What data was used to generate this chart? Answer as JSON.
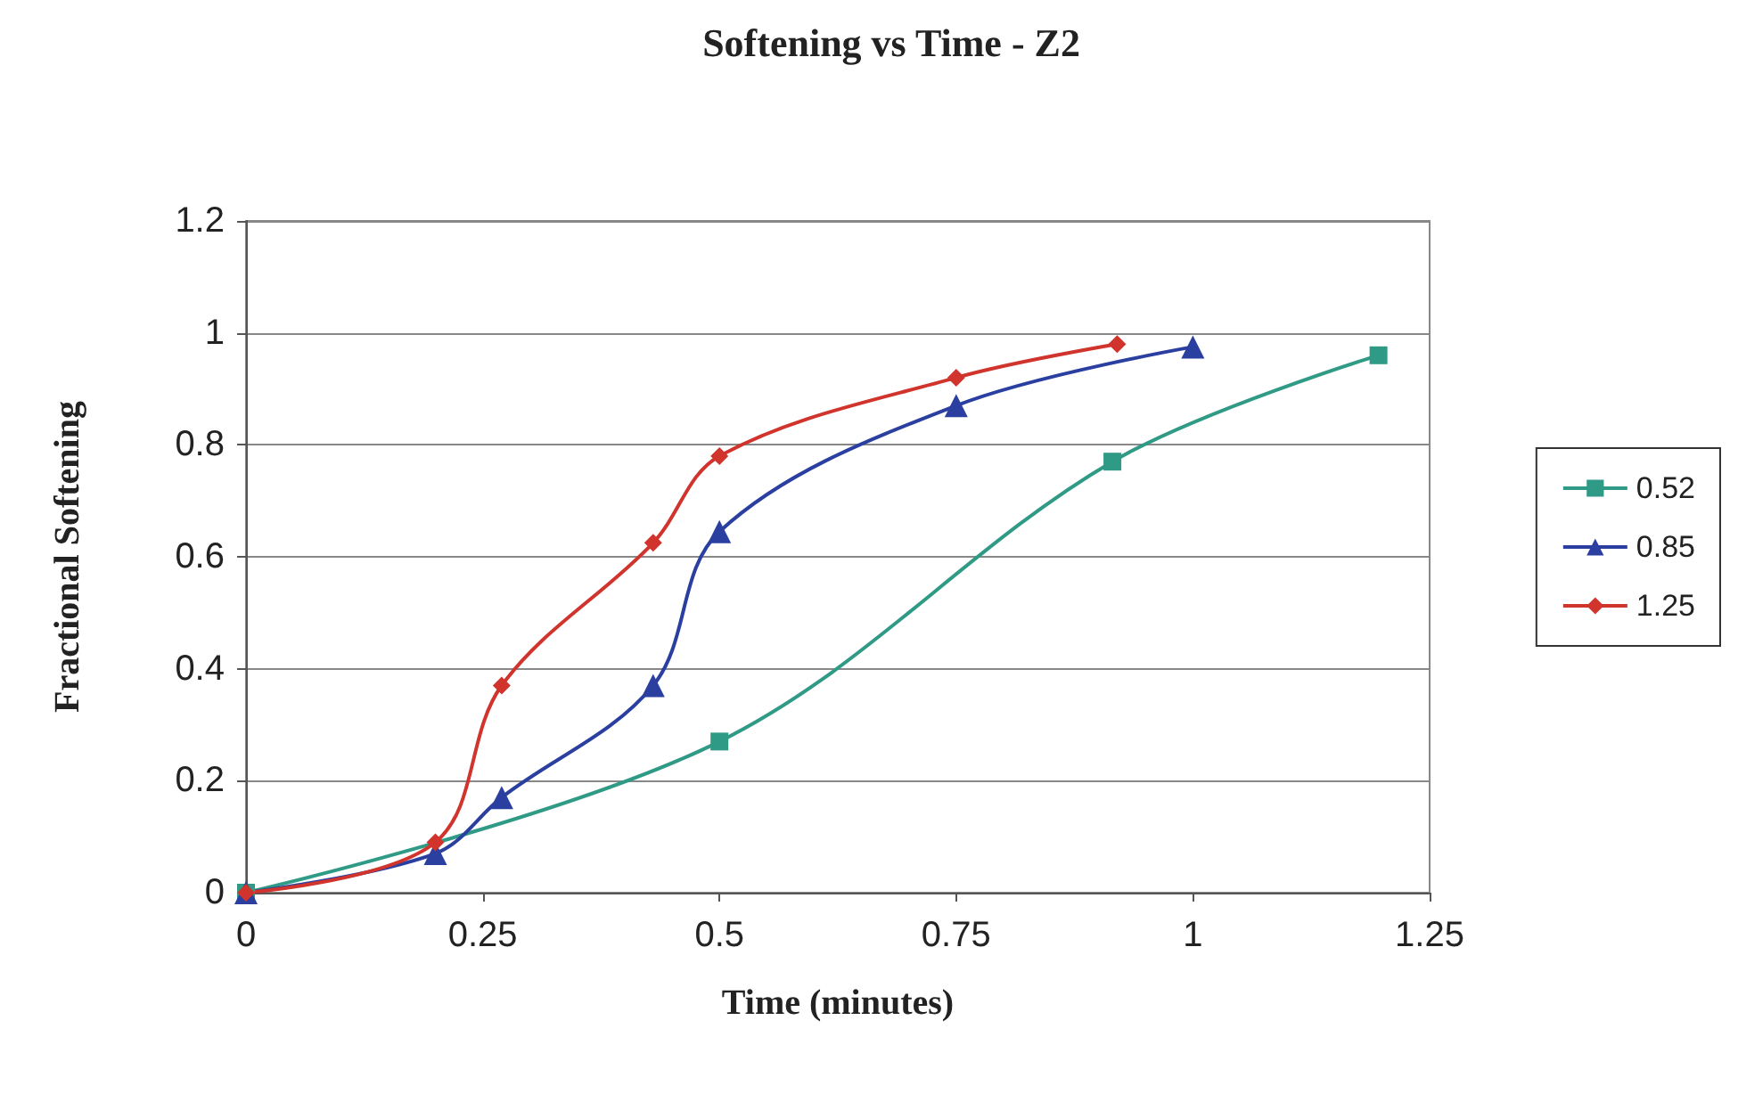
{
  "chart_data": {
    "type": "line",
    "title": "Softening vs Time - Z2",
    "xlabel": "Time (minutes)",
    "ylabel": "Fractional Softening",
    "xlim": [
      0,
      1.25
    ],
    "xticks": [
      0,
      0.25,
      0.5,
      0.75,
      1,
      1.25
    ],
    "ylim": [
      0,
      1.2
    ],
    "yticks": [
      0,
      0.2,
      0.4,
      0.6,
      0.8,
      1,
      1.2
    ],
    "grid": "y",
    "legend": "right",
    "series": [
      {
        "name": "0.52",
        "color": "#2f9a85",
        "marker": "square",
        "x": [
          0,
          0.5,
          0.915,
          1.196
        ],
        "values": [
          0,
          0.27,
          0.77,
          0.96
        ]
      },
      {
        "name": "0.85",
        "color": "#2a3fa0",
        "marker": "triangle",
        "x": [
          0,
          0.2,
          0.27,
          0.43,
          0.5,
          0.75,
          1.0
        ],
        "values": [
          0,
          0.07,
          0.17,
          0.37,
          0.645,
          0.87,
          0.975
        ]
      },
      {
        "name": "1.25",
        "color": "#d0342c",
        "marker": "diamond",
        "x": [
          0,
          0.2,
          0.27,
          0.43,
          0.5,
          0.75,
          0.92
        ],
        "values": [
          0,
          0.09,
          0.37,
          0.625,
          0.78,
          0.92,
          0.98
        ]
      }
    ]
  }
}
